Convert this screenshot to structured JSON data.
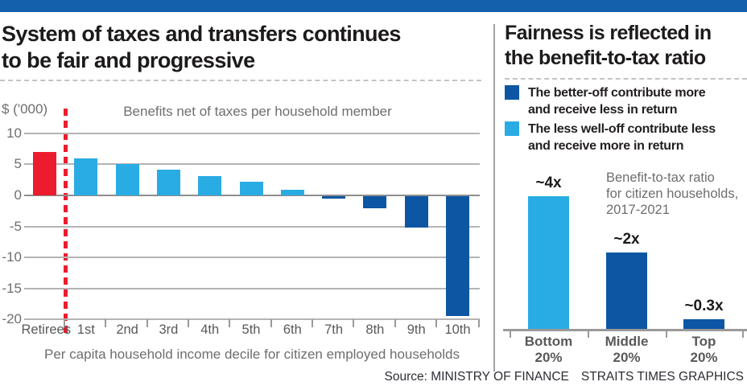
{
  "colors": {
    "banner_blue": "#1560ac",
    "dark_blue": "#0c56a3",
    "light_blue": "#29ace3",
    "red": "#ec1c2e",
    "grid_gray": "#b4b4b6",
    "text_gray": "#6d6e71",
    "text_dark": "#231f20"
  },
  "chart_data": [
    {
      "type": "bar",
      "title_lines": [
        "System of taxes and transfers continues",
        "to be fair and progressive"
      ],
      "unit_label": "$ ('000)",
      "subtitle": "Benefits net of taxes per household member",
      "xlabel": "Per capita household income decile for citizen employed households",
      "categories": [
        "Retirees",
        "1st",
        "2nd",
        "3rd",
        "4th",
        "5th",
        "6th",
        "7th",
        "8th",
        "9th",
        "10th"
      ],
      "values": [
        7,
        5.9,
        5,
        4.2,
        3.1,
        2.2,
        0.9,
        -0.4,
        -1.9,
        -5,
        -19.3
      ],
      "bar_colors": [
        "red",
        "light_blue",
        "light_blue",
        "light_blue",
        "light_blue",
        "light_blue",
        "light_blue",
        "dark_blue",
        "dark_blue",
        "dark_blue",
        "dark_blue"
      ],
      "y_ticks": [
        10,
        5,
        0,
        -5,
        -10,
        -15,
        -20
      ],
      "ylim": [
        -20,
        10
      ],
      "grid": true,
      "separator_note": "red dashed line separates Retirees from income deciles"
    },
    {
      "type": "bar",
      "title_lines": [
        "Fairness is reflected in",
        "the benefit-to-tax ratio"
      ],
      "legend": [
        {
          "color": "dark_blue",
          "lines": [
            "The better-off contribute more",
            "and receive less in return"
          ]
        },
        {
          "color": "light_blue",
          "lines": [
            "The less well-off contribute less",
            "and receive more in return"
          ]
        }
      ],
      "annotation_lines": [
        "Benefit-to-tax ratio",
        "for citizen households,",
        "2017-2021"
      ],
      "categories": [
        "Bottom 20%",
        "Middle 20%",
        "Top 20%"
      ],
      "category_lines": [
        [
          "Bottom",
          "20%"
        ],
        [
          "Middle",
          "20%"
        ],
        [
          "Top",
          "20%"
        ]
      ],
      "values": [
        4,
        2.3,
        0.3
      ],
      "value_labels": [
        "~4x",
        "~2x",
        "~0.3x"
      ],
      "bar_colors": [
        "light_blue",
        "dark_blue",
        "dark_blue"
      ],
      "ylim": [
        0,
        4.5
      ],
      "grid": false,
      "legend_position": "top"
    }
  ],
  "footer": {
    "source_label": "Source: MINISTRY OF FINANCE",
    "credit": "STRAITS TIMES GRAPHICS"
  }
}
